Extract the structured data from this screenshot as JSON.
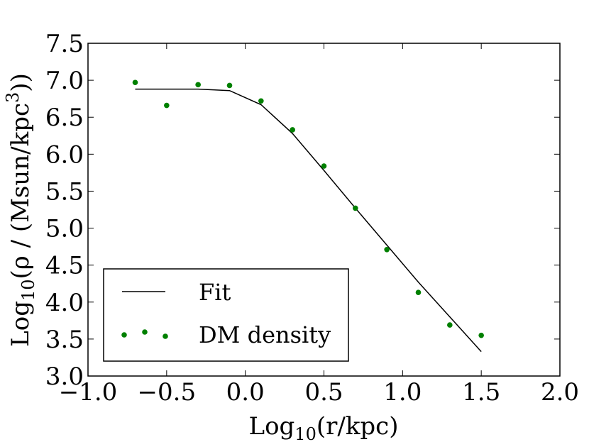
{
  "chart_data": {
    "type": "line",
    "title": "",
    "xlabel": {
      "prefix": "Log",
      "sub": "10",
      "suffix": "(r/kpc)"
    },
    "ylabel": {
      "prefix": "Log",
      "sub": "10",
      "middle": "(ρ / (Msun/kpc",
      "sup": "3",
      "suffix": "))"
    },
    "xlim": [
      -1.0,
      2.0
    ],
    "ylim": [
      3.0,
      7.5
    ],
    "xticks": [
      -1.0,
      -0.5,
      0.0,
      0.5,
      1.0,
      1.5,
      2.0
    ],
    "yticks": [
      3.0,
      3.5,
      4.0,
      4.5,
      5.0,
      5.5,
      6.0,
      6.5,
      7.0,
      7.5
    ],
    "xtick_labels": [
      "−1.0",
      "−0.5",
      "0.0",
      "0.5",
      "1.0",
      "1.5",
      "2.0"
    ],
    "ytick_labels": [
      "3.0",
      "3.5",
      "4.0",
      "4.5",
      "5.0",
      "5.5",
      "6.0",
      "6.5",
      "7.0",
      "7.5"
    ],
    "grid": false,
    "legend": {
      "placement": "lower-left"
    },
    "series": [
      {
        "name": "Fit",
        "kind": "line",
        "color": "#000000",
        "x": [
          -0.7,
          -0.3,
          -0.1,
          0.1,
          0.3,
          0.5,
          0.7,
          0.9,
          1.1,
          1.3,
          1.5
        ],
        "y": [
          6.88,
          6.88,
          6.86,
          6.67,
          6.28,
          5.78,
          5.27,
          4.77,
          4.27,
          3.8,
          3.33
        ]
      },
      {
        "name": "DM density",
        "kind": "scatter",
        "color": "#008000",
        "x": [
          -0.7,
          -0.5,
          -0.3,
          -0.1,
          0.1,
          0.3,
          0.5,
          0.7,
          0.9,
          1.1,
          1.3,
          1.5
        ],
        "y": [
          6.97,
          6.66,
          6.94,
          6.93,
          6.72,
          6.33,
          5.84,
          5.27,
          4.71,
          4.13,
          3.69,
          3.55
        ]
      }
    ]
  }
}
